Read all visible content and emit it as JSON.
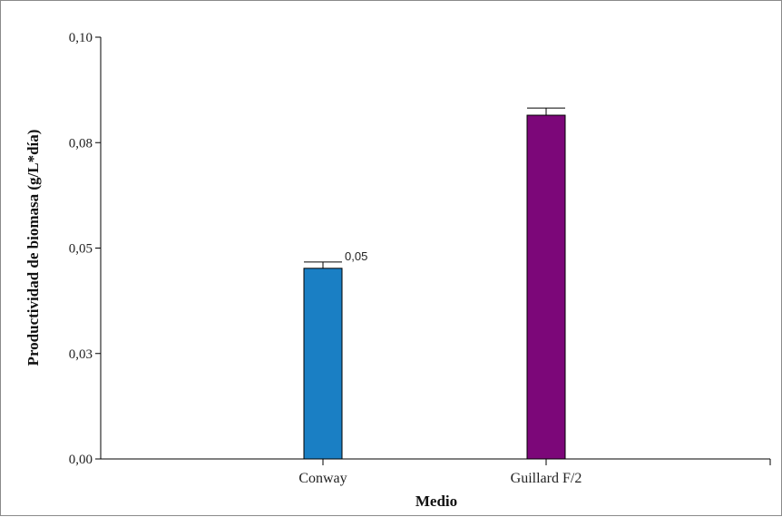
{
  "chart_data": {
    "type": "bar",
    "xlabel": "Medio",
    "ylabel": "Productividad de biomasa (g/L*día)",
    "categories": [
      "Conway",
      "Guillard F/2"
    ],
    "values": [
      0.0452,
      0.0815
    ],
    "error_upper": [
      0.0467,
      0.0832
    ],
    "colors": [
      "#1a7fc4",
      "#7c0779"
    ],
    "ylim": [
      0,
      0.1
    ],
    "yticks": [
      0.0,
      0.025,
      0.05,
      0.075,
      0.1
    ],
    "ytick_labels": [
      "0,00",
      "0,03",
      "0,05",
      "0,08",
      "0,10"
    ],
    "data_labels": [
      "0,05",
      ""
    ],
    "grid": false,
    "legend": "none"
  }
}
